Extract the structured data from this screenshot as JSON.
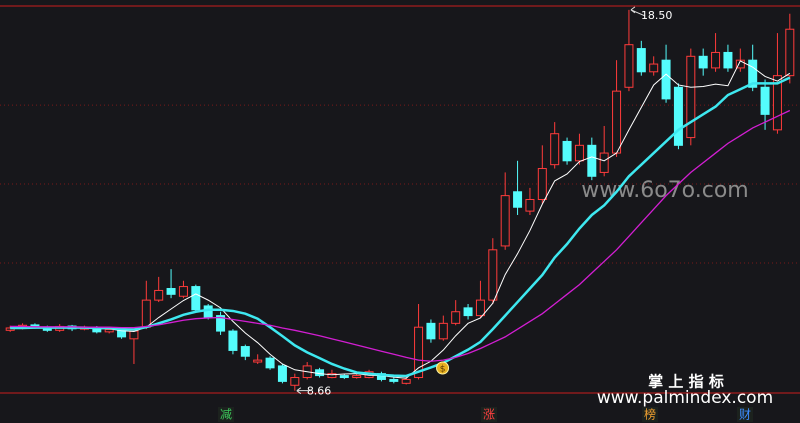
{
  "chart_data": {
    "type": "candlestick",
    "open": [
      10.22,
      10.28,
      10.36,
      10.3,
      10.22,
      10.33,
      10.25,
      10.3,
      10.18,
      10.22,
      10.0,
      10.3,
      11.0,
      11.3,
      11.1,
      11.35,
      10.85,
      10.6,
      10.2,
      9.8,
      9.4,
      9.5,
      9.3,
      8.8,
      9.0,
      9.2,
      9.0,
      9.05,
      9.0,
      9.0,
      9.1,
      8.95,
      8.85,
      9.0,
      10.4,
      10.0,
      10.4,
      10.8,
      10.6,
      11.0,
      12.4,
      13.8,
      13.3,
      13.6,
      14.5,
      15.1,
      14.6,
      15.0,
      14.3,
      14.8,
      16.5,
      17.5,
      16.9,
      17.2,
      16.5,
      15.2,
      17.3,
      17.0,
      17.4,
      17.0,
      17.2,
      16.5,
      15.4,
      16.8
    ],
    "high": [
      10.34,
      10.4,
      10.4,
      10.34,
      10.38,
      10.36,
      10.34,
      10.33,
      10.28,
      10.25,
      10.26,
      11.5,
      11.6,
      11.8,
      11.5,
      11.4,
      10.9,
      10.7,
      10.25,
      9.85,
      9.6,
      9.55,
      9.35,
      9.1,
      9.4,
      9.25,
      9.2,
      9.1,
      9.12,
      9.2,
      9.15,
      9.0,
      9.02,
      10.9,
      10.5,
      10.6,
      11.0,
      10.9,
      11.5,
      12.6,
      14.3,
      14.6,
      13.9,
      15.0,
      15.6,
      15.2,
      15.3,
      15.2,
      15.5,
      17.2,
      18.5,
      17.7,
      17.3,
      17.6,
      16.6,
      17.5,
      17.5,
      17.9,
      17.6,
      17.5,
      17.6,
      16.7,
      17.9,
      18.4
    ],
    "low": [
      10.18,
      10.24,
      10.26,
      10.18,
      10.18,
      10.2,
      10.22,
      10.14,
      10.14,
      10.0,
      9.35,
      10.25,
      10.95,
      11.05,
      11.05,
      10.7,
      10.5,
      10.1,
      9.6,
      9.45,
      9.35,
      9.2,
      8.85,
      8.66,
      8.95,
      9.0,
      8.98,
      8.96,
      8.97,
      8.98,
      8.9,
      8.85,
      8.82,
      8.95,
      9.9,
      9.95,
      10.35,
      10.5,
      10.55,
      10.9,
      12.3,
      13.2,
      13.2,
      13.5,
      14.4,
      14.5,
      14.5,
      14.1,
      14.2,
      14.7,
      16.4,
      16.8,
      16.8,
      16.1,
      14.9,
      15.0,
      16.8,
      16.9,
      16.9,
      16.9,
      16.4,
      15.4,
      15.3,
      16.6
    ],
    "close": [
      10.28,
      10.35,
      10.3,
      10.22,
      10.32,
      10.26,
      10.3,
      10.18,
      10.24,
      10.05,
      10.2,
      11.0,
      11.25,
      11.15,
      11.35,
      10.75,
      10.55,
      10.2,
      9.7,
      9.55,
      9.45,
      9.25,
      8.9,
      9.0,
      9.3,
      9.05,
      9.1,
      9.0,
      9.05,
      9.15,
      8.95,
      8.9,
      8.95,
      10.3,
      10.0,
      10.4,
      10.7,
      10.6,
      11.0,
      12.3,
      13.7,
      13.4,
      13.6,
      14.4,
      15.3,
      14.6,
      15.0,
      14.2,
      14.8,
      16.4,
      17.6,
      16.9,
      17.1,
      16.2,
      15.0,
      17.3,
      17.0,
      17.4,
      17.0,
      17.2,
      16.5,
      15.8,
      16.8,
      18.0
    ],
    "up_color": "#ff3b3b",
    "down_color": "#54fcfc",
    "series": [
      {
        "color": "#ffffff",
        "width": 1,
        "values": [
          10.28,
          10.29,
          10.3,
          10.29,
          10.29,
          10.29,
          10.28,
          10.26,
          10.26,
          10.21,
          10.19,
          10.3,
          10.55,
          10.77,
          10.99,
          11.16,
          11.0,
          10.8,
          10.45,
          10.15,
          9.9,
          9.6,
          9.35,
          9.2,
          9.15,
          9.1,
          9.07,
          9.09,
          9.1,
          9.06,
          9.05,
          9.01,
          8.98,
          9.25,
          9.42,
          9.71,
          10.08,
          10.4,
          10.54,
          10.92,
          11.66,
          12.2,
          12.8,
          13.48,
          14.08,
          14.26,
          14.58,
          14.7,
          14.6,
          14.8,
          15.4,
          15.98,
          16.56,
          16.84,
          16.56,
          16.5,
          16.52,
          16.58,
          16.54,
          17.18,
          17.02,
          16.78,
          16.66,
          16.86
        ]
      },
      {
        "color": "#3ee8f0",
        "width": 2.5,
        "values": [
          10.28,
          10.28,
          10.29,
          10.29,
          10.29,
          10.29,
          10.29,
          10.28,
          10.28,
          10.25,
          10.24,
          10.3,
          10.4,
          10.5,
          10.62,
          10.7,
          10.75,
          10.75,
          10.72,
          10.65,
          10.52,
          10.3,
          10.07,
          9.83,
          9.65,
          9.5,
          9.35,
          9.23,
          9.13,
          9.1,
          9.07,
          9.05,
          9.04,
          9.15,
          9.26,
          9.38,
          9.55,
          9.72,
          9.92,
          10.25,
          10.6,
          10.95,
          11.3,
          11.65,
          12.1,
          12.45,
          12.85,
          13.2,
          13.45,
          13.8,
          14.2,
          14.5,
          14.8,
          15.1,
          15.4,
          15.6,
          15.8,
          16.0,
          16.3,
          16.45,
          16.6,
          16.6,
          16.6,
          16.75
        ]
      },
      {
        "color": "#d21ed2",
        "width": 1.3,
        "values": [
          10.32,
          10.32,
          10.31,
          10.31,
          10.31,
          10.31,
          10.3,
          10.3,
          10.3,
          10.29,
          10.29,
          10.32,
          10.36,
          10.42,
          10.48,
          10.52,
          10.54,
          10.55,
          10.5,
          10.45,
          10.4,
          10.35,
          10.28,
          10.22,
          10.15,
          10.08,
          10.0,
          9.92,
          9.84,
          9.76,
          9.68,
          9.6,
          9.52,
          9.45,
          9.42,
          9.45,
          9.52,
          9.62,
          9.75,
          9.9,
          10.05,
          10.25,
          10.45,
          10.65,
          10.9,
          11.15,
          11.4,
          11.7,
          12.0,
          12.3,
          12.65,
          13.0,
          13.35,
          13.7,
          14.0,
          14.3,
          14.55,
          14.8,
          15.05,
          15.25,
          15.45,
          15.6,
          15.75,
          15.9
        ]
      }
    ],
    "ylim": [
      8.6,
      18.6
    ],
    "gridlines": [
      16.04,
      14.0,
      11.96
    ],
    "annotations": [
      {
        "value": 18.5,
        "label": "18.50"
      },
      {
        "value": 8.66,
        "label": "8.66"
      }
    ],
    "marker_icon": "$",
    "watermarks": [
      "www.6o7o.com",
      "掌 上 指 标",
      "www.palmindex.com"
    ],
    "bottom_labels": [
      {
        "text": "减",
        "color": "#3cc85a"
      },
      {
        "text": "涨",
        "color": "#ff4040"
      },
      {
        "text": "榜",
        "color": "#f0a030"
      },
      {
        "text": "财",
        "color": "#3c8cff"
      }
    ]
  }
}
